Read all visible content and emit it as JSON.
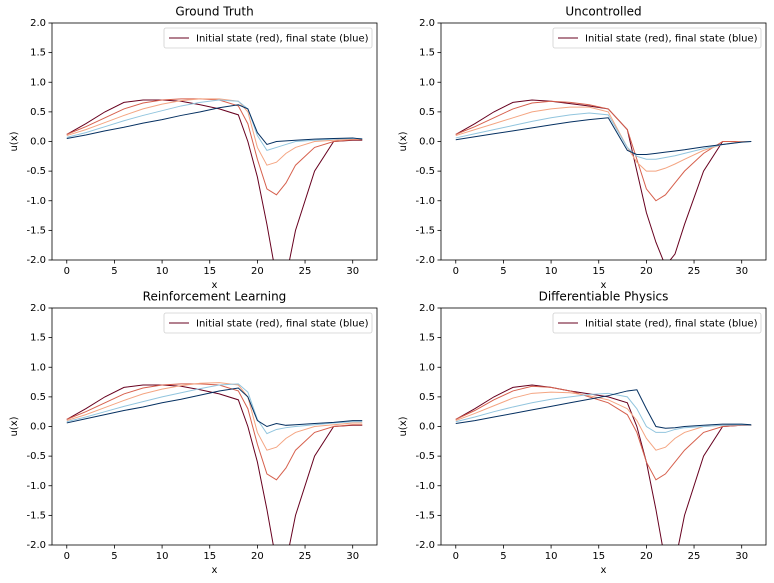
{
  "chart_data": [
    {
      "type": "line",
      "title": "Ground Truth",
      "xlabel": "x",
      "ylabel": "u(x)",
      "legend": "Initial state (red), final state (blue)",
      "legend_loc": "upper right",
      "xlim": [
        -1.55,
        32.55
      ],
      "xticks": [
        0,
        5,
        10,
        15,
        20,
        25,
        30
      ],
      "ylim": [
        -2,
        2
      ],
      "yticks": [
        {
          "value": -2,
          "label": "-2.0"
        },
        {
          "value": -1.5,
          "label": "-1.5"
        },
        {
          "value": -1,
          "label": "-1.0"
        },
        {
          "value": -0.5,
          "label": "-0.5"
        },
        {
          "value": 0,
          "label": "0.0"
        },
        {
          "value": 0.5,
          "label": "0.5"
        },
        {
          "value": 1,
          "label": "1.0"
        },
        {
          "value": 1.5,
          "label": "1.5"
        },
        {
          "value": 2,
          "label": "2.0"
        }
      ],
      "x": [
        0,
        2,
        4,
        6,
        8,
        10,
        12,
        14,
        16,
        18,
        19,
        20,
        21,
        22,
        23,
        24,
        26,
        28,
        30,
        31
      ],
      "series": [
        {
          "color": "#67001f",
          "values": [
            0.12,
            0.3,
            0.5,
            0.66,
            0.7,
            0.7,
            0.68,
            0.62,
            0.55,
            0.45,
            0.0,
            -0.6,
            -1.4,
            -2.3,
            -2.3,
            -1.5,
            -0.5,
            0.0,
            0.02,
            0.02
          ]
        },
        {
          "color": "#d6604d",
          "values": [
            0.12,
            0.25,
            0.4,
            0.55,
            0.65,
            0.7,
            0.72,
            0.72,
            0.7,
            0.6,
            0.3,
            -0.3,
            -0.8,
            -0.9,
            -0.7,
            -0.4,
            -0.1,
            0.0,
            0.03,
            0.03
          ]
        },
        {
          "color": "#f4a582",
          "values": [
            0.1,
            0.2,
            0.32,
            0.44,
            0.55,
            0.63,
            0.69,
            0.72,
            0.72,
            0.68,
            0.5,
            -0.1,
            -0.4,
            -0.35,
            -0.2,
            -0.1,
            0.0,
            0.02,
            0.04,
            0.04
          ]
        },
        {
          "color": "#92c5de",
          "values": [
            0.07,
            0.15,
            0.25,
            0.35,
            0.44,
            0.52,
            0.6,
            0.66,
            0.7,
            0.68,
            0.55,
            0.1,
            -0.15,
            -0.1,
            -0.05,
            0.0,
            0.02,
            0.04,
            0.05,
            0.05
          ]
        },
        {
          "color": "#053061",
          "values": [
            0.05,
            0.11,
            0.18,
            0.24,
            0.31,
            0.37,
            0.44,
            0.5,
            0.57,
            0.62,
            0.55,
            0.15,
            -0.05,
            0.0,
            0.01,
            0.02,
            0.04,
            0.05,
            0.06,
            0.04
          ]
        }
      ]
    },
    {
      "type": "line",
      "title": "Uncontrolled",
      "xlabel": "x",
      "ylabel": "u(x)",
      "legend": "Initial state (red), final state (blue)",
      "legend_loc": "upper right",
      "xlim": [
        -1.55,
        32.55
      ],
      "xticks": [
        0,
        5,
        10,
        15,
        20,
        25,
        30
      ],
      "ylim": [
        -2,
        2
      ],
      "yticks": [
        {
          "value": -2,
          "label": "-2.0"
        },
        {
          "value": -1.5,
          "label": "-1.5"
        },
        {
          "value": -1,
          "label": "-1.0"
        },
        {
          "value": -0.5,
          "label": "-0.5"
        },
        {
          "value": 0,
          "label": "0.0"
        },
        {
          "value": 0.5,
          "label": "0.5"
        },
        {
          "value": 1,
          "label": "1.0"
        },
        {
          "value": 1.5,
          "label": "1.5"
        },
        {
          "value": 2,
          "label": "2.0"
        }
      ],
      "x": [
        0,
        2,
        4,
        6,
        8,
        10,
        12,
        14,
        16,
        18,
        19,
        20,
        21,
        22,
        23,
        24,
        26,
        28,
        30,
        31
      ],
      "series": [
        {
          "color": "#67001f",
          "values": [
            0.12,
            0.3,
            0.5,
            0.66,
            0.7,
            0.68,
            0.64,
            0.6,
            0.55,
            0.2,
            -0.5,
            -1.2,
            -1.7,
            -2.1,
            -1.9,
            -1.4,
            -0.5,
            0.0,
            0.0,
            0.0
          ]
        },
        {
          "color": "#d6604d",
          "values": [
            0.12,
            0.25,
            0.4,
            0.55,
            0.65,
            0.68,
            0.66,
            0.62,
            0.55,
            0.2,
            -0.3,
            -0.8,
            -1.0,
            -0.9,
            -0.7,
            -0.5,
            -0.2,
            0.0,
            0.0,
            0.0
          ]
        },
        {
          "color": "#f4a582",
          "values": [
            0.1,
            0.2,
            0.3,
            0.4,
            0.5,
            0.55,
            0.58,
            0.58,
            0.5,
            -0.1,
            -0.35,
            -0.5,
            -0.5,
            -0.45,
            -0.38,
            -0.3,
            -0.15,
            -0.05,
            0.0,
            0.0
          ]
        },
        {
          "color": "#92c5de",
          "values": [
            0.06,
            0.13,
            0.2,
            0.27,
            0.34,
            0.4,
            0.45,
            0.48,
            0.45,
            -0.1,
            -0.25,
            -0.3,
            -0.3,
            -0.27,
            -0.24,
            -0.2,
            -0.12,
            -0.05,
            -0.01,
            0.0
          ]
        },
        {
          "color": "#053061",
          "values": [
            0.03,
            0.08,
            0.13,
            0.18,
            0.23,
            0.28,
            0.33,
            0.37,
            0.4,
            -0.15,
            -0.22,
            -0.22,
            -0.2,
            -0.18,
            -0.16,
            -0.14,
            -0.09,
            -0.05,
            -0.01,
            0.0
          ]
        }
      ]
    },
    {
      "type": "line",
      "title": "Reinforcement Learning",
      "xlabel": "x",
      "ylabel": "u(x)",
      "legend": "Initial state (red), final state (blue)",
      "legend_loc": "upper right",
      "xlim": [
        -1.55,
        32.55
      ],
      "xticks": [
        0,
        5,
        10,
        15,
        20,
        25,
        30
      ],
      "ylim": [
        -2,
        2
      ],
      "yticks": [
        {
          "value": -2,
          "label": "-2.0"
        },
        {
          "value": -1.5,
          "label": "-1.5"
        },
        {
          "value": -1,
          "label": "-1.0"
        },
        {
          "value": -0.5,
          "label": "-0.5"
        },
        {
          "value": 0,
          "label": "0.0"
        },
        {
          "value": 0.5,
          "label": "0.5"
        },
        {
          "value": 1,
          "label": "1.0"
        },
        {
          "value": 1.5,
          "label": "1.5"
        },
        {
          "value": 2,
          "label": "2.0"
        }
      ],
      "x": [
        0,
        2,
        4,
        6,
        8,
        10,
        12,
        14,
        16,
        18,
        19,
        20,
        21,
        22,
        23,
        24,
        26,
        28,
        30,
        31
      ],
      "series": [
        {
          "color": "#67001f",
          "values": [
            0.12,
            0.3,
            0.5,
            0.66,
            0.7,
            0.7,
            0.68,
            0.62,
            0.55,
            0.45,
            0.0,
            -0.6,
            -1.4,
            -2.3,
            -2.3,
            -1.5,
            -0.5,
            0.0,
            0.02,
            0.02
          ]
        },
        {
          "color": "#d6604d",
          "values": [
            0.12,
            0.25,
            0.4,
            0.55,
            0.65,
            0.7,
            0.72,
            0.72,
            0.7,
            0.6,
            0.3,
            -0.3,
            -0.8,
            -0.9,
            -0.7,
            -0.4,
            -0.1,
            0.0,
            0.03,
            0.03
          ]
        },
        {
          "color": "#f4a582",
          "values": [
            0.1,
            0.2,
            0.32,
            0.44,
            0.55,
            0.63,
            0.69,
            0.73,
            0.74,
            0.7,
            0.5,
            -0.1,
            -0.4,
            -0.35,
            -0.2,
            -0.1,
            0.0,
            0.03,
            0.06,
            0.06
          ]
        },
        {
          "color": "#92c5de",
          "values": [
            0.08,
            0.16,
            0.25,
            0.34,
            0.42,
            0.5,
            0.57,
            0.64,
            0.7,
            0.72,
            0.58,
            0.12,
            -0.12,
            -0.05,
            -0.02,
            0.0,
            0.03,
            0.06,
            0.08,
            0.08
          ]
        },
        {
          "color": "#053061",
          "values": [
            0.06,
            0.13,
            0.2,
            0.27,
            0.33,
            0.4,
            0.46,
            0.53,
            0.6,
            0.65,
            0.5,
            0.1,
            0.0,
            0.05,
            0.02,
            0.03,
            0.05,
            0.07,
            0.1,
            0.1
          ]
        }
      ]
    },
    {
      "type": "line",
      "title": "Differentiable Physics",
      "xlabel": "x",
      "ylabel": "u(x)",
      "legend": "Initial state (red), final state (blue)",
      "legend_loc": "upper right",
      "xlim": [
        -1.55,
        32.55
      ],
      "xticks": [
        0,
        5,
        10,
        15,
        20,
        25,
        30
      ],
      "ylim": [
        -2,
        2
      ],
      "yticks": [
        {
          "value": -2,
          "label": "-2.0"
        },
        {
          "value": -1.5,
          "label": "-1.5"
        },
        {
          "value": -1,
          "label": "-1.0"
        },
        {
          "value": -0.5,
          "label": "-0.5"
        },
        {
          "value": 0,
          "label": "0.0"
        },
        {
          "value": 0.5,
          "label": "0.5"
        },
        {
          "value": 1,
          "label": "1.0"
        },
        {
          "value": 1.5,
          "label": "1.5"
        },
        {
          "value": 2,
          "label": "2.0"
        }
      ],
      "x": [
        0,
        2,
        4,
        6,
        8,
        10,
        12,
        14,
        16,
        18,
        19,
        20,
        21,
        22,
        23,
        24,
        26,
        28,
        30,
        31
      ],
      "series": [
        {
          "color": "#67001f",
          "values": [
            0.12,
            0.3,
            0.5,
            0.66,
            0.7,
            0.66,
            0.6,
            0.55,
            0.5,
            0.4,
            0.0,
            -0.6,
            -1.4,
            -2.3,
            -2.3,
            -1.5,
            -0.5,
            0.0,
            0.02,
            0.02
          ]
        },
        {
          "color": "#d6604d",
          "values": [
            0.12,
            0.27,
            0.45,
            0.6,
            0.68,
            0.66,
            0.6,
            0.5,
            0.4,
            0.2,
            -0.1,
            -0.6,
            -0.9,
            -0.8,
            -0.6,
            -0.4,
            -0.1,
            0.0,
            0.02,
            0.02
          ]
        },
        {
          "color": "#f4a582",
          "values": [
            0.1,
            0.22,
            0.35,
            0.48,
            0.56,
            0.58,
            0.57,
            0.52,
            0.45,
            0.3,
            0.1,
            -0.2,
            -0.4,
            -0.35,
            -0.2,
            -0.1,
            0.0,
            0.02,
            0.03,
            0.02
          ]
        },
        {
          "color": "#92c5de",
          "values": [
            0.08,
            0.16,
            0.25,
            0.33,
            0.4,
            0.46,
            0.5,
            0.54,
            0.56,
            0.5,
            0.3,
            0.0,
            -0.1,
            -0.1,
            -0.05,
            -0.02,
            0.0,
            0.02,
            0.03,
            0.02
          ]
        },
        {
          "color": "#053061",
          "values": [
            0.05,
            0.1,
            0.16,
            0.22,
            0.28,
            0.34,
            0.4,
            0.46,
            0.52,
            0.6,
            0.62,
            0.3,
            0.0,
            -0.03,
            -0.02,
            0.0,
            0.02,
            0.04,
            0.04,
            0.03
          ]
        }
      ]
    }
  ]
}
